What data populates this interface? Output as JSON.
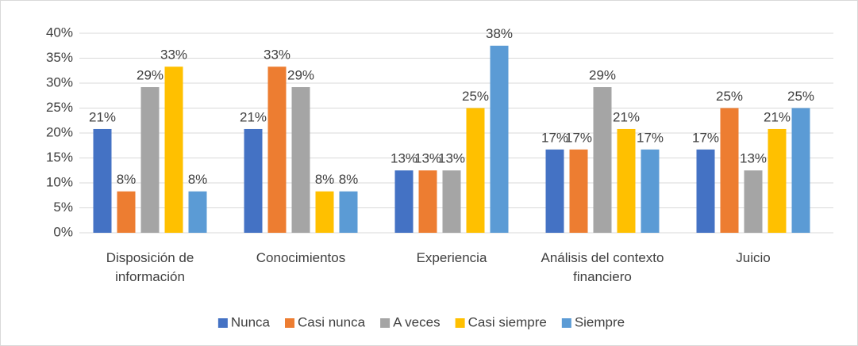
{
  "chart_data": {
    "type": "bar",
    "categories": [
      "Disposición de información",
      "Conocimientos",
      "Experiencia",
      "Análisis del contexto financiero",
      "Juicio"
    ],
    "series": [
      {
        "name": "Nunca",
        "color": "#4472c4",
        "values": [
          20.8,
          20.8,
          12.5,
          16.7,
          16.7
        ],
        "value_labels": [
          "21%",
          "21%",
          "13%",
          "17%",
          "17%"
        ]
      },
      {
        "name": "Casi nunca",
        "color": "#ed7d31",
        "values": [
          8.3,
          33.3,
          12.5,
          16.7,
          25
        ],
        "value_labels": [
          "8%",
          "33%",
          "13%",
          "17%",
          "25%"
        ]
      },
      {
        "name": "A veces",
        "color": "#a5a5a5",
        "values": [
          29.2,
          29.2,
          12.5,
          29.2,
          12.5
        ],
        "value_labels": [
          "29%",
          "29%",
          "13%",
          "29%",
          "13%"
        ]
      },
      {
        "name": "Casi siempre",
        "color": "#ffc000",
        "values": [
          33.3,
          8.3,
          25,
          20.8,
          20.8
        ],
        "value_labels": [
          "33%",
          "8%",
          "25%",
          "21%",
          "21%"
        ]
      },
      {
        "name": "Siempre",
        "color": "#5b9bd5",
        "values": [
          8.3,
          8.3,
          37.5,
          16.7,
          25
        ],
        "value_labels": [
          "8%",
          "8%",
          "38%",
          "17%",
          "25%"
        ]
      }
    ],
    "ylim": [
      0,
      40
    ],
    "yticks": [
      {
        "value": 0,
        "label": "0%"
      },
      {
        "value": 5,
        "label": "5%"
      },
      {
        "value": 10,
        "label": "10%"
      },
      {
        "value": 15,
        "label": "15%"
      },
      {
        "value": 20,
        "label": "20%"
      },
      {
        "value": 25,
        "label": "25%"
      },
      {
        "value": 30,
        "label": "30%"
      },
      {
        "value": 35,
        "label": "35%"
      },
      {
        "value": 40,
        "label": "40%"
      }
    ],
    "grid": true,
    "legend": "bottom"
  }
}
